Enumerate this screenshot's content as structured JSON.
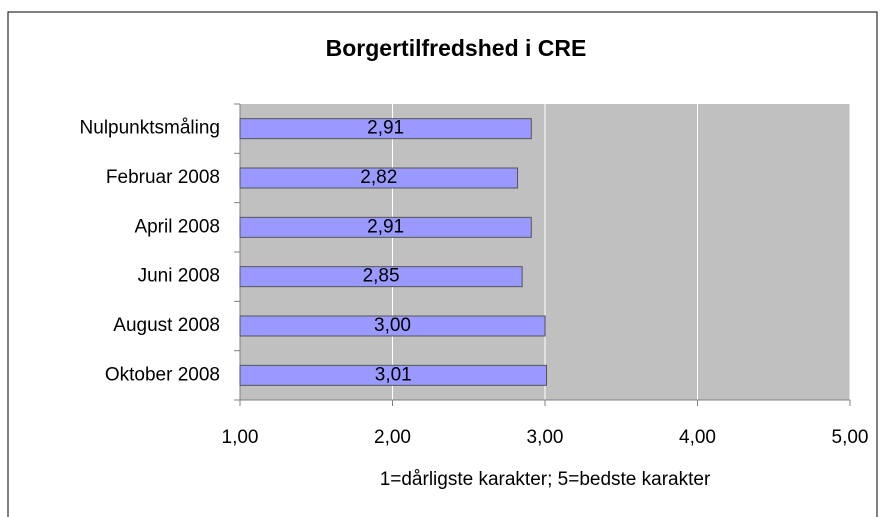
{
  "chart_data": {
    "type": "hbar",
    "title": "Borgertilfredshed i CRE",
    "x_label": "1=dårligste karakter; 5=bedste karakter",
    "categories": [
      "Nulpunktsmåling",
      "Februar 2008",
      "April 2008",
      "Juni 2008",
      "August 2008",
      "Oktober 2008"
    ],
    "values": [
      2.91,
      2.82,
      2.91,
      2.85,
      3.0,
      3.01
    ],
    "value_labels": [
      "2,91",
      "2,82",
      "2,91",
      "2,85",
      "3,00",
      "3,01"
    ],
    "color": "#9999ff",
    "xlim": [
      1,
      5
    ],
    "xticks": [
      {
        "value": 1,
        "label": "1,00"
      },
      {
        "value": 2,
        "label": "2,00"
      },
      {
        "value": 3,
        "label": "3,00"
      },
      {
        "value": 4,
        "label": "4,00"
      },
      {
        "value": 5,
        "label": "5,00"
      }
    ],
    "grid": true
  }
}
